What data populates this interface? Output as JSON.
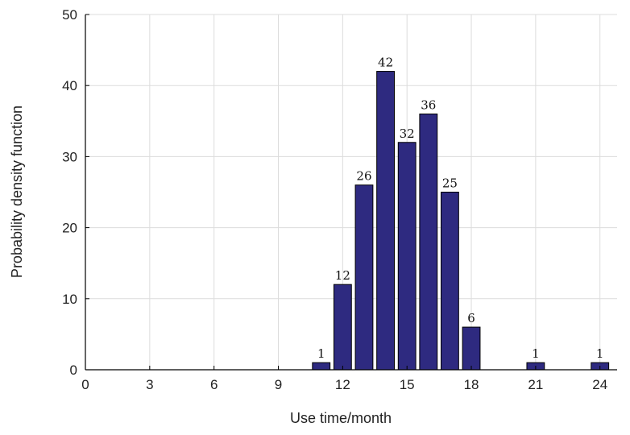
{
  "chart_data": {
    "type": "bar",
    "xlabel": "Use time/month",
    "ylabel": "Probability density function",
    "xlim": [
      0,
      24.8
    ],
    "ylim": [
      0,
      50
    ],
    "xticks": [
      0,
      3,
      6,
      9,
      12,
      15,
      18,
      21,
      24
    ],
    "yticks": [
      0,
      10,
      20,
      30,
      40,
      50
    ],
    "grid": true,
    "bar_color": "#2e2a80",
    "x": [
      11,
      12,
      13,
      14,
      15,
      16,
      17,
      18,
      21,
      24
    ],
    "values": [
      1,
      12,
      26,
      42,
      32,
      36,
      25,
      6,
      1,
      1
    ],
    "data_labels": [
      "1",
      "12",
      "26",
      "42",
      "32",
      "36",
      "25",
      "6",
      "1",
      "1"
    ]
  }
}
